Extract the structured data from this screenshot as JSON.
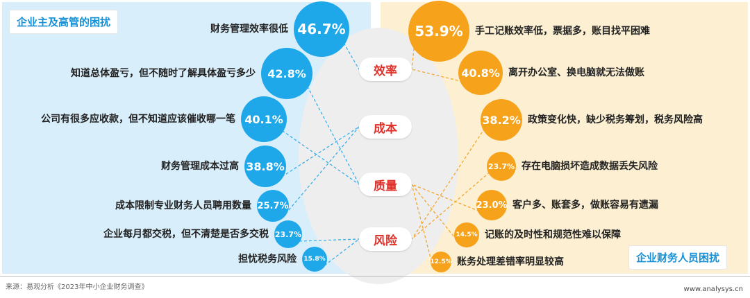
{
  "left_title": "企业主及高管的困扰",
  "right_title": "企业财务人员困扰",
  "categories": [
    "效率",
    "成本",
    "质量",
    "风险"
  ],
  "left_items": [
    {
      "label": "财务管理效率很低",
      "value": "46.7%",
      "category": "效率"
    },
    {
      "label": "知道总体盈亏，但不随时了解具体盈亏多少",
      "value": "42.8%",
      "category": "质量"
    },
    {
      "label": "公司有很多应收款，但不知道应该催收哪一笔",
      "value": "40.1%",
      "category": "质量"
    },
    {
      "label": "财务管理成本过高",
      "value": "38.8%",
      "category": "成本"
    },
    {
      "label": "成本限制专业财务人员聘用数量",
      "value": "25.7%",
      "category": "成本"
    },
    {
      "label": "企业每月都交税，但不清楚是否多交税",
      "value": "23.7%",
      "category": "风险"
    },
    {
      "label": "担忧税务风险",
      "value": "15.8%",
      "category": "风险"
    }
  ],
  "right_items": [
    {
      "label": "手工记账效率低，票据多，账目找平困难",
      "value": "53.9%",
      "category": "效率"
    },
    {
      "label": "离开办公室、换电脑就无法做账",
      "value": "40.8%",
      "category": "效率"
    },
    {
      "label": "政策变化快，缺少税务筹划，税务风险高",
      "value": "38.2%",
      "category": "风险"
    },
    {
      "label": "存在电脑损坏造成数据丢失风险",
      "value": "23.7%",
      "category": "风险"
    },
    {
      "label": "客户多、账套多，做账容易有遗漏",
      "value": "23.0%",
      "category": "质量"
    },
    {
      "label": "记账的及时性和规范性难以保障",
      "value": "14.5%",
      "category": "质量"
    },
    {
      "label": "账务处理差错率明显较高",
      "value": "12.5%",
      "category": "质量"
    }
  ],
  "source": "来源：易观分析《2023年中小企业财务调查》",
  "website": "www.analysys.cn",
  "colors": {
    "left_circle": "#1ea8ea",
    "right_circle": "#f7a21b",
    "category_text": "#e0302a"
  }
}
